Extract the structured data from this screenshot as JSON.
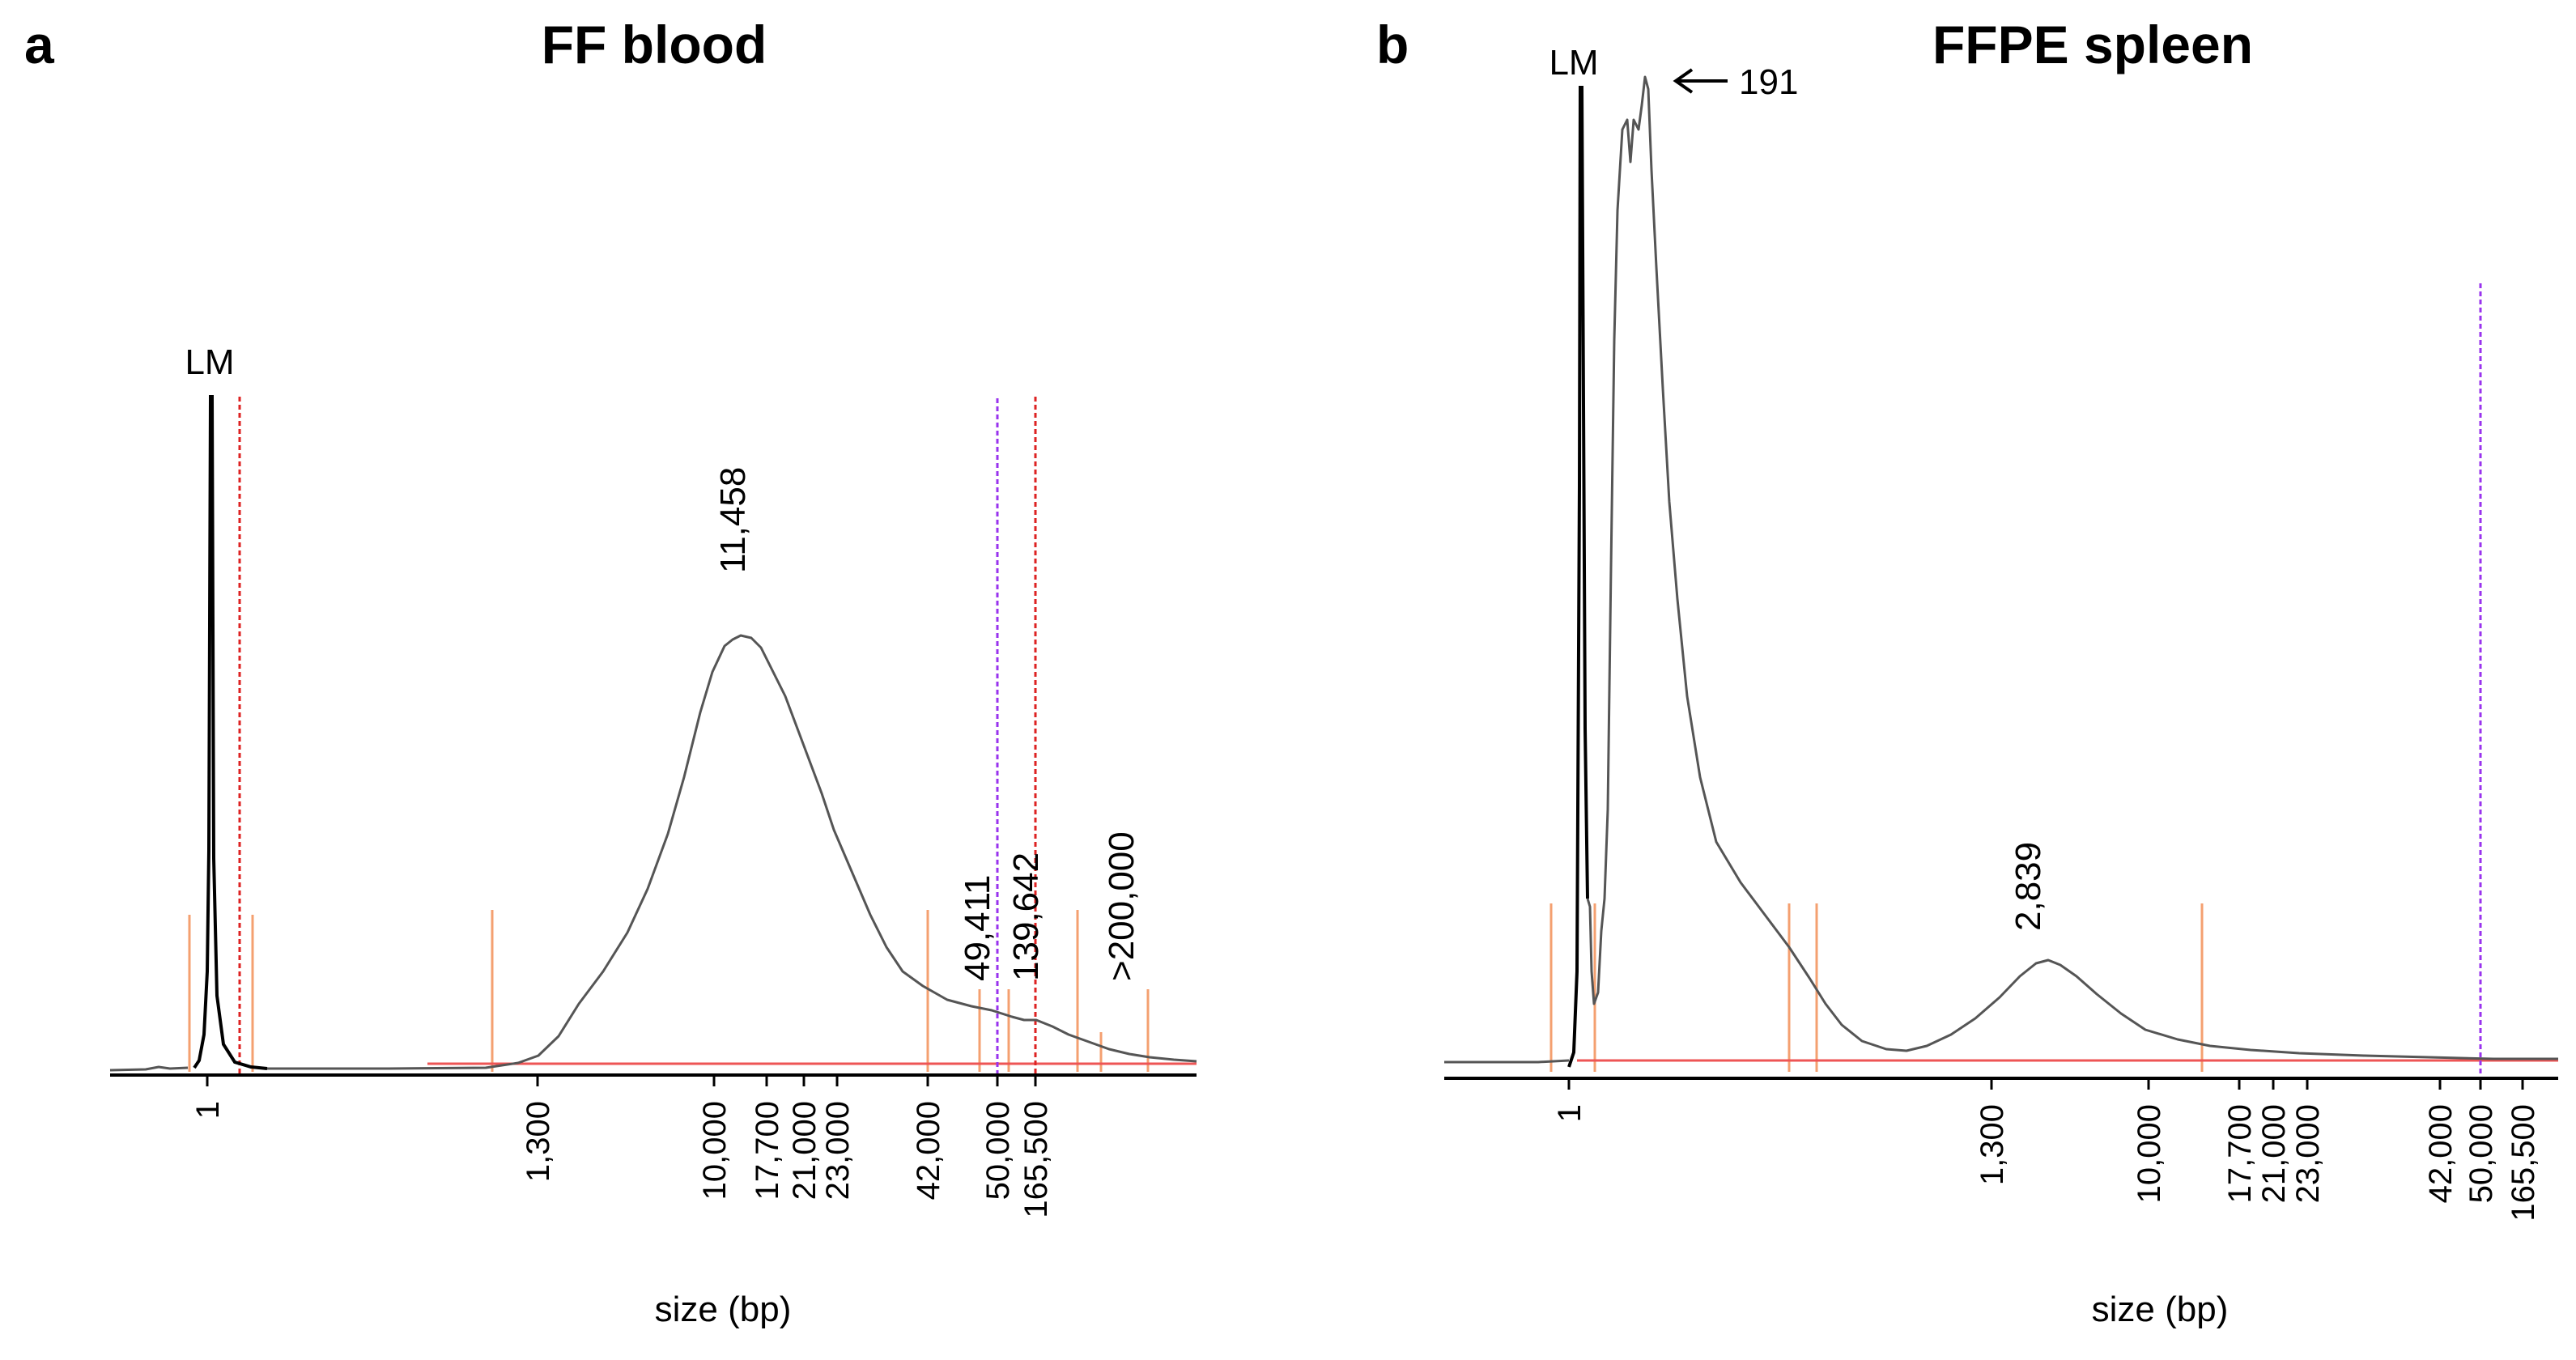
{
  "figure": {
    "panels": [
      {
        "panel_letter": "a",
        "title": "FF blood",
        "xlabel": "size (bp)",
        "lm_label": "LM",
        "peak_labels": [
          "11,458",
          "49,411",
          "139,642",
          ">200,000"
        ],
        "tick_labels": [
          "1",
          "1,300",
          "10,000",
          "17,700",
          "21,000",
          "23,000",
          "42,000",
          "50,000",
          "165,500"
        ]
      },
      {
        "panel_letter": "b",
        "title": "FFPE spleen",
        "xlabel": "size (bp)",
        "lm_label": "LM",
        "peak_labels": [
          "191",
          "2,839"
        ],
        "tick_labels": [
          "1",
          "1,300",
          "10,000",
          "17,700",
          "21,000",
          "23,000",
          "42,000",
          "50,000",
          "165,500"
        ]
      }
    ]
  },
  "chart_data": [
    {
      "type": "line",
      "title": "FF blood",
      "xlabel": "size (bp)",
      "ylabel": "",
      "x_ticks": [
        "1",
        "1,300",
        "10,000",
        "17,700",
        "21,000",
        "23,000",
        "42,000",
        "50,000",
        "165,500"
      ],
      "series": [
        {
          "name": "electropherogram",
          "points": [
            [
              0.55,
              0.002
            ],
            [
              0.85,
              0.003
            ],
            [
              0.97,
              0.02
            ],
            [
              1.0,
              0.95
            ],
            [
              1.03,
              0.05
            ],
            [
              1.15,
              0.005
            ],
            [
              100,
              0.0
            ],
            [
              600,
              0.004
            ],
            [
              1300,
              0.02
            ],
            [
              2200,
              0.12
            ],
            [
              3500,
              0.27
            ],
            [
              5500,
              0.44
            ],
            [
              7500,
              0.56
            ],
            [
              9500,
              0.62
            ],
            [
              11458,
              0.635
            ],
            [
              13500,
              0.6
            ],
            [
              17000,
              0.52
            ],
            [
              21000,
              0.42
            ],
            [
              26000,
              0.31
            ],
            [
              33000,
              0.2
            ],
            [
              42000,
              0.12
            ],
            [
              49411,
              0.095
            ],
            [
              60000,
              0.08
            ],
            [
              80000,
              0.065
            ],
            [
              100000,
              0.05
            ],
            [
              139642,
              0.035
            ],
            [
              170000,
              0.02
            ],
            [
              200000,
              0.012
            ],
            [
              260000,
              0.007
            ],
            [
              330000,
              0.005
            ]
          ]
        }
      ],
      "annotations": [
        "LM",
        "11,458",
        "49,411",
        "139,642",
        ">200,000"
      ]
    },
    {
      "type": "line",
      "title": "FFPE spleen",
      "xlabel": "size (bp)",
      "ylabel": "",
      "x_ticks": [
        "1",
        "1,300",
        "10,000",
        "17,700",
        "21,000",
        "23,000",
        "42,000",
        "50,000",
        "165,500"
      ],
      "series": [
        {
          "name": "electropherogram",
          "points": [
            [
              1.0,
              1.0
            ],
            [
              1.05,
              0.16
            ],
            [
              1.1,
              0.1
            ],
            [
              1.25,
              0.13
            ],
            [
              1.4,
              0.55
            ],
            [
              2.2,
              0.9
            ],
            [
              3.5,
              0.96
            ],
            [
              4.8,
              0.9
            ],
            [
              6.5,
              0.6
            ],
            [
              10,
              0.4
            ],
            [
              20,
              0.27
            ],
            [
              45,
              0.18
            ],
            [
              95,
              0.1
            ],
            [
              140,
              0.06
            ],
            [
              191,
              0.04
            ],
            [
              260,
              0.02
            ],
            [
              350,
              0.015
            ],
            [
              550,
              0.03
            ],
            [
              900,
              0.07
            ],
            [
              1400,
              0.1
            ],
            [
              2000,
              0.115
            ],
            [
              2839,
              0.115
            ],
            [
              4000,
              0.1
            ],
            [
              6000,
              0.07
            ],
            [
              9000,
              0.05
            ],
            [
              13000,
              0.033
            ],
            [
              20000,
              0.025
            ],
            [
              40000,
              0.015
            ],
            [
              100000,
              0.008
            ],
            [
              165500,
              0.005
            ]
          ]
        }
      ],
      "annotations": [
        "LM",
        "191",
        "2,839"
      ]
    }
  ]
}
